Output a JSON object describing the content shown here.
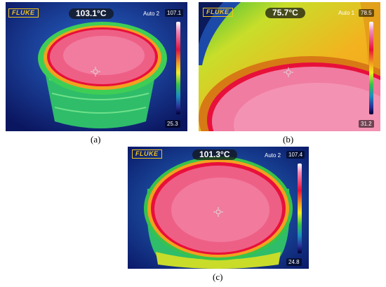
{
  "panels": {
    "a": {
      "logo": "FLUKE",
      "temperature": "103.1°C",
      "mode": "Auto 2",
      "max": "107.1",
      "min": "25.3",
      "caption": "(a)"
    },
    "b": {
      "logo": "FLUKE",
      "temperature": "75.7°C",
      "mode": "Auto 1",
      "max": "78.5",
      "min": "31.2",
      "caption": "(b)"
    },
    "c": {
      "logo": "FLUKE",
      "temperature": "101.3°C",
      "mode": "Auto 2",
      "max": "107.4",
      "min": "24.8",
      "caption": "(c)"
    }
  },
  "colors": {
    "hot": "#e8496d",
    "ring": "#e8103a",
    "warm": "#f3a01f",
    "cool": "#34c24a",
    "cold": "#1b2a8a",
    "logo": "#f3c41b"
  }
}
